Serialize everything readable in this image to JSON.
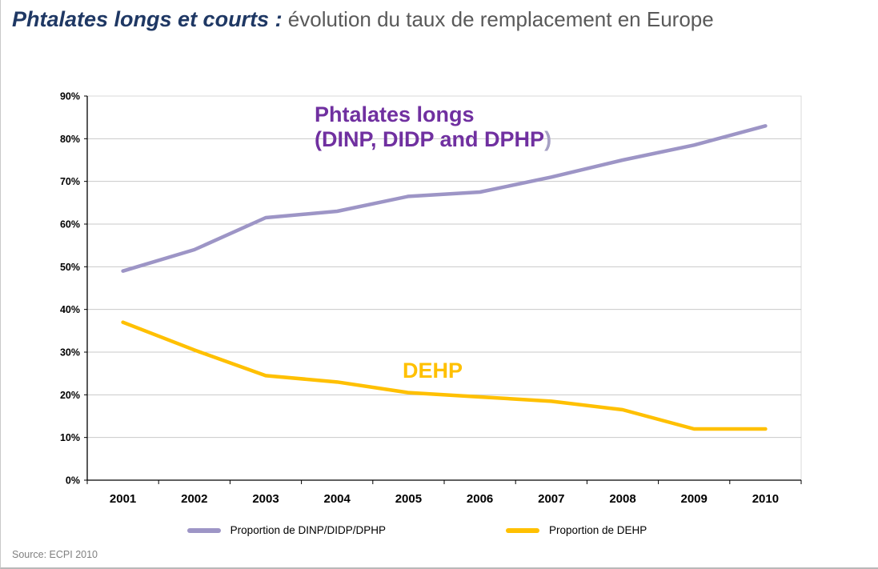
{
  "header": {
    "title_main": "Phtalates longs et courts :",
    "title_sub": " évolution du taux de remplacement en Europe",
    "title_main_color": "#1f3864",
    "title_sub_color": "#595959"
  },
  "chart_data": {
    "type": "line",
    "title": "",
    "xlabel": "",
    "ylabel": "",
    "categories": [
      "2001",
      "2002",
      "2003",
      "2004",
      "2005",
      "2006",
      "2007",
      "2008",
      "2009",
      "2010"
    ],
    "series": [
      {
        "name": "Proportion de DINP/DIDP/DPHP",
        "color": "#9d95c6",
        "values": [
          49,
          54,
          61.5,
          63,
          66.5,
          67.5,
          71,
          75,
          78.5,
          83
        ]
      },
      {
        "name": "Proportion de DEHP",
        "color": "#ffc000",
        "values": [
          37,
          30.5,
          24.5,
          23,
          20.5,
          19.5,
          18.5,
          16.5,
          12,
          12
        ]
      }
    ],
    "ylim": [
      0,
      90
    ],
    "ytick_step": 10,
    "ytick_labels": [
      "0%",
      "10%",
      "20%",
      "30%",
      "40%",
      "50%",
      "60%",
      "70%",
      "80%",
      "90%"
    ],
    "grid": true,
    "gridline_color": "#c9c9c9",
    "plot_border_color": "#d9d9d9",
    "axis_color": "#000000",
    "legend_position": "bottom",
    "annotations": {
      "longs": {
        "line1": "Phtalates longs",
        "line2": "(DINP, DIDP and DPHP",
        "paren": ")",
        "color": "#7030a0",
        "paren_color": "#a6a0c4"
      },
      "dehp": {
        "text": "DEHP",
        "color": "#ffc000"
      }
    }
  },
  "footer": {
    "source": "Source: ECPI 2010",
    "source_color": "#808080"
  }
}
